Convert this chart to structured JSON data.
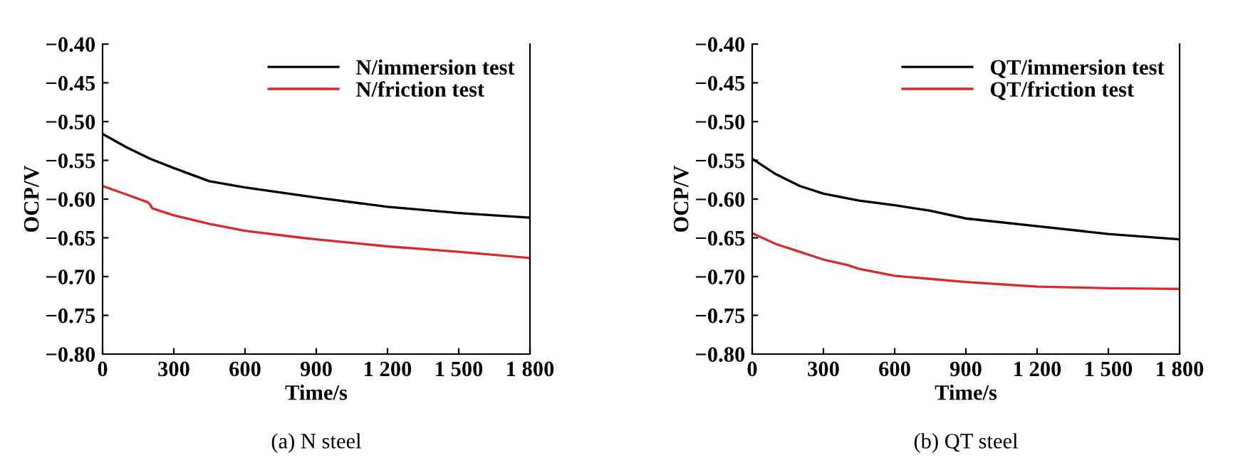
{
  "chart_data": [
    {
      "type": "line",
      "title": "(a) N steel",
      "xlabel": "Time/s",
      "ylabel": "OCP/V",
      "xlim": [
        0,
        1800
      ],
      "ylim": [
        -0.8,
        -0.4
      ],
      "xticks": [
        0,
        300,
        600,
        900,
        {
          "value": 1200,
          "label": "1 200"
        },
        {
          "value": 1500,
          "label": "1 500"
        },
        {
          "value": 1800,
          "label": "1 800"
        }
      ],
      "yticks": [
        {
          "value": -0.8,
          "label": "−0.80"
        },
        {
          "value": -0.75,
          "label": "−0.75"
        },
        {
          "value": -0.7,
          "label": "−0.70"
        },
        {
          "value": -0.65,
          "label": "−0.65"
        },
        {
          "value": -0.6,
          "label": "−0.60"
        },
        {
          "value": -0.55,
          "label": "−0.55"
        },
        {
          "value": -0.5,
          "label": "−0.50"
        },
        {
          "value": -0.45,
          "label": "−0.45"
        },
        {
          "value": -0.4,
          "label": "−0.40"
        }
      ],
      "grid": false,
      "legend": "top right",
      "marker": "none",
      "line_style": "solid",
      "series": [
        {
          "name": "N/immersion test",
          "color": "#000000",
          "x": [
            0,
            100,
            200,
            300,
            450,
            600,
            900,
            1200,
            1500,
            1800
          ],
          "values": [
            -0.516,
            -0.533,
            -0.548,
            -0.56,
            -0.577,
            -0.585,
            -0.598,
            -0.61,
            -0.618,
            -0.624
          ]
        },
        {
          "name": "N/friction test",
          "color": "#d62c2c",
          "x": [
            0,
            100,
            190,
            200,
            210,
            300,
            450,
            600,
            840,
            900,
            1200,
            1500,
            1800
          ],
          "values": [
            -0.583,
            -0.594,
            -0.604,
            -0.607,
            -0.612,
            -0.621,
            -0.632,
            -0.641,
            -0.65,
            -0.652,
            -0.661,
            -0.668,
            -0.676
          ]
        }
      ]
    },
    {
      "type": "line",
      "title": "(b) QT steel",
      "xlabel": "Time/s",
      "ylabel": "OCP/V",
      "xlim": [
        0,
        1800
      ],
      "ylim": [
        -0.8,
        -0.4
      ],
      "xticks": [
        0,
        300,
        600,
        900,
        {
          "value": 1200,
          "label": "1 200"
        },
        {
          "value": 1500,
          "label": "1 500"
        },
        {
          "value": 1800,
          "label": "1 800"
        }
      ],
      "yticks": [
        {
          "value": -0.8,
          "label": "−0.80"
        },
        {
          "value": -0.75,
          "label": "−0.75"
        },
        {
          "value": -0.7,
          "label": "−0.70"
        },
        {
          "value": -0.65,
          "label": "−0.65"
        },
        {
          "value": -0.6,
          "label": "−0.60"
        },
        {
          "value": -0.55,
          "label": "−0.55"
        },
        {
          "value": -0.5,
          "label": "−0.50"
        },
        {
          "value": -0.45,
          "label": "−0.45"
        },
        {
          "value": -0.4,
          "label": "−0.40"
        }
      ],
      "grid": false,
      "legend": "top right",
      "marker": "none",
      "line_style": "solid",
      "series": [
        {
          "name": "QT/immersion test",
          "color": "#000000",
          "x": [
            0,
            100,
            200,
            300,
            450,
            600,
            750,
            900,
            1200,
            1500,
            1800
          ],
          "values": [
            -0.548,
            -0.568,
            -0.583,
            -0.593,
            -0.602,
            -0.608,
            -0.615,
            -0.625,
            -0.635,
            -0.645,
            -0.652
          ]
        },
        {
          "name": "QT/friction test",
          "color": "#d62c2c",
          "x": [
            0,
            100,
            200,
            300,
            400,
            450,
            600,
            750,
            900,
            1100,
            1200,
            1500,
            1800
          ],
          "values": [
            -0.644,
            -0.658,
            -0.668,
            -0.678,
            -0.685,
            -0.69,
            -0.699,
            -0.703,
            -0.707,
            -0.711,
            -0.713,
            -0.715,
            -0.716
          ]
        }
      ]
    }
  ]
}
